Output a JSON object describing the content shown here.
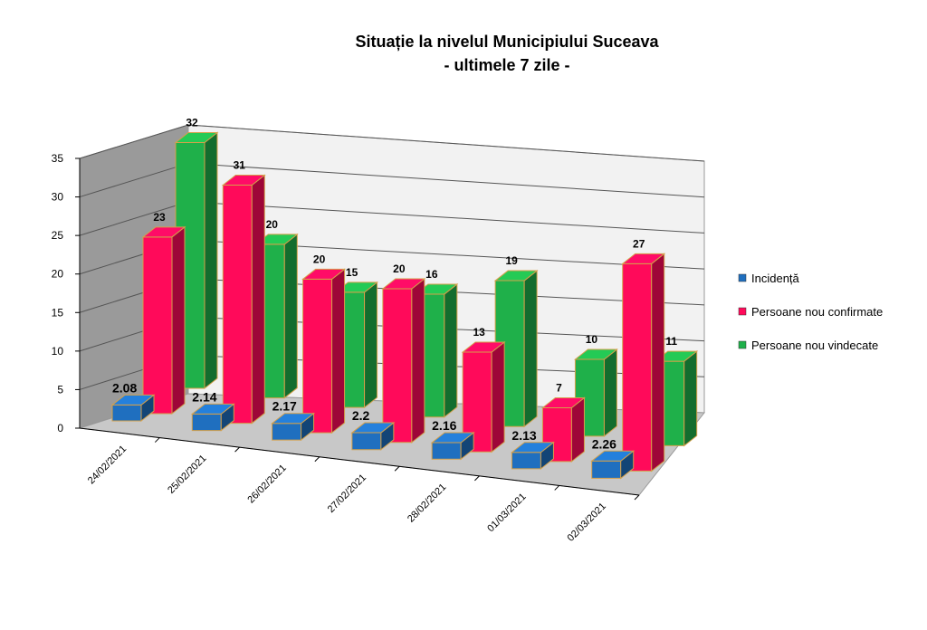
{
  "chart_data": {
    "type": "bar",
    "title": "Situație la nivelul Municipiului Suceava",
    "subtitle": "- ultimele 7 zile -",
    "categories": [
      "24/02/2021",
      "25/02/2021",
      "26/02/2021",
      "27/02/2021",
      "28/02/2021",
      "01/03/2021",
      "02/03/2021"
    ],
    "series": [
      {
        "name": "Incidență",
        "color": "#1f6fbf",
        "values": [
          2.08,
          2.14,
          2.17,
          2.2,
          2.16,
          2.13,
          2.26
        ]
      },
      {
        "name": "Persoane nou confirmate",
        "color": "#ff0a5a",
        "values": [
          23,
          31,
          20,
          20,
          13,
          7,
          27
        ]
      },
      {
        "name": "Persoane nou vindecate",
        "color": "#1fb04a",
        "values": [
          32,
          20,
          15,
          16,
          19,
          10,
          11
        ]
      }
    ],
    "ylim": [
      0,
      35
    ],
    "yticks": [
      0,
      5,
      10,
      15,
      20,
      25,
      30,
      35
    ],
    "grid": true,
    "legend_position": "right",
    "three_d": true
  }
}
